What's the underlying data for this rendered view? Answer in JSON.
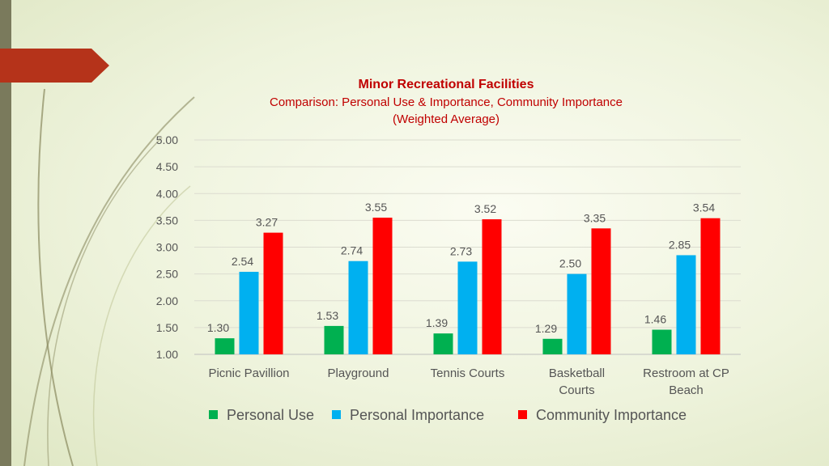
{
  "chart_data": {
    "type": "bar",
    "title": "Minor Recreational Facilities",
    "subtitle_lines": [
      "Comparison: Personal Use & Importance, Community Importance",
      "(Weighted Average)"
    ],
    "categories": [
      [
        "Picnic Pavillion"
      ],
      [
        "Playground"
      ],
      [
        "Tennis Courts"
      ],
      [
        "Basketball",
        "Courts"
      ],
      [
        "Restroom at CP",
        "Beach"
      ]
    ],
    "series": [
      {
        "name": "Personal Use",
        "color": "#00b050",
        "values": [
          1.3,
          1.53,
          1.39,
          1.29,
          1.46
        ]
      },
      {
        "name": "Personal Importance",
        "color": "#00b0f0",
        "values": [
          2.54,
          2.74,
          2.73,
          2.5,
          2.85
        ]
      },
      {
        "name": "Community Importance",
        "color": "#ff0000",
        "values": [
          3.27,
          3.55,
          3.52,
          3.35,
          3.54
        ]
      }
    ],
    "ylim": [
      1.0,
      5.0
    ],
    "yticks": [
      "1.00",
      "1.50",
      "2.00",
      "2.50",
      "3.00",
      "3.50",
      "4.00",
      "4.50",
      "5.00"
    ],
    "grid": true,
    "legend_position": "bottom"
  },
  "theme": {
    "accent": "#b5331a",
    "sidebar": "#7a7a5c",
    "swoosh": "#8a8a60"
  }
}
